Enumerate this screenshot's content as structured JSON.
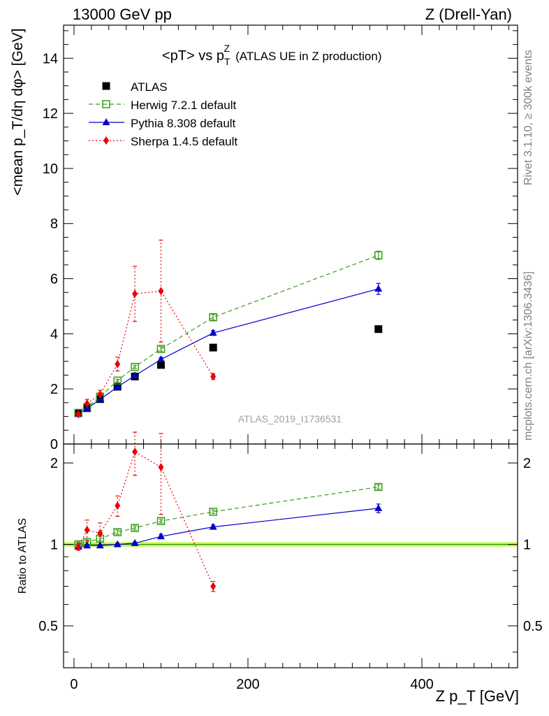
{
  "header": {
    "left": "13000 GeV pp",
    "right": "Z (Drell-Yan)"
  },
  "plot_title": {
    "main": "<pT> vs p",
    "sub": "T",
    "sup": "Z",
    "tail": "(ATLAS UE in Z production)"
  },
  "side_labels": {
    "rivet": "Rivet 3.1.10, ≥ 300k events",
    "mcplots": "mcplots.cern.ch [arXiv:1306.3436]"
  },
  "watermark": "ATLAS_2019_I1736531",
  "axis_labels": {
    "ylabel_main": "<mean p_T/dη dφ> [GeV]",
    "ylabel_ratio": "Ratio to ATLAS",
    "xlabel": "Z p_T [GeV]"
  },
  "colors": {
    "atlas": "#000000",
    "herwig": "#3a9a1a",
    "pythia": "#0000cc",
    "sherpa": "#ee0000",
    "band": "#ccff66",
    "reference": "#3a9a1a"
  },
  "chart_data": [
    {
      "type": "scatter",
      "title": "<pT> vs p_T^Z (ATLAS UE in Z production)",
      "xlabel": "Z p_T [GeV]",
      "ylabel": "<mean p_T/dη dφ> [GeV]",
      "xlim": [
        -12,
        510
      ],
      "ylim": [
        0,
        15.2
      ],
      "yticks": [
        0,
        2,
        4,
        6,
        8,
        10,
        12,
        14
      ],
      "xticks": [
        0,
        200,
        400
      ],
      "legend_position": "top-left",
      "series": [
        {
          "name": "ATLAS",
          "key": "atlas",
          "marker": "square",
          "line": "none",
          "x": [
            5,
            15,
            30,
            50,
            70,
            100,
            160,
            350
          ],
          "y": [
            1.12,
            1.3,
            1.63,
            2.08,
            2.45,
            2.87,
            3.5,
            4.17
          ]
        },
        {
          "name": "Herwig 7.2.1 default",
          "key": "herwig",
          "marker": "open-square",
          "line": "dashed",
          "x": [
            5,
            15,
            30,
            50,
            70,
            100,
            160,
            350
          ],
          "y": [
            1.13,
            1.33,
            1.72,
            2.3,
            2.8,
            3.45,
            4.6,
            6.85
          ],
          "yerr": [
            0.03,
            0.03,
            0.04,
            0.05,
            0.06,
            0.08,
            0.1,
            0.15
          ]
        },
        {
          "name": "Pythia 8.308 default",
          "key": "pythia",
          "marker": "triangle",
          "line": "solid",
          "x": [
            5,
            15,
            30,
            50,
            70,
            100,
            160,
            350
          ],
          "y": [
            1.1,
            1.29,
            1.62,
            2.07,
            2.48,
            3.07,
            4.03,
            5.63
          ],
          "yerr": [
            0.02,
            0.02,
            0.03,
            0.04,
            0.05,
            0.07,
            0.09,
            0.2
          ]
        },
        {
          "name": "Sherpa 1.4.5 default",
          "key": "sherpa",
          "marker": "diamond",
          "line": "dotted",
          "x": [
            5,
            15,
            30,
            50,
            70,
            100,
            160
          ],
          "y": [
            1.08,
            1.47,
            1.8,
            2.9,
            5.45,
            5.55,
            2.45
          ],
          "yerr": [
            0.05,
            0.15,
            0.15,
            0.25,
            1.0,
            1.85,
            0.1
          ]
        }
      ]
    },
    {
      "type": "scatter",
      "title": "Ratio to ATLAS",
      "xlabel": "Z p_T [GeV]",
      "ylabel": "Ratio to ATLAS",
      "xlim": [
        -12,
        510
      ],
      "ylim": [
        0.35,
        2.35
      ],
      "ytick_values": [
        0.5,
        1,
        2
      ],
      "ytick_labels": [
        "0.5",
        "1",
        "2"
      ],
      "xticks": [
        0,
        200,
        400
      ],
      "xtick_labels": [
        "0",
        "200",
        "400"
      ],
      "reference_line": 1.0,
      "band": [
        0.98,
        1.02
      ],
      "series": [
        {
          "name": "Herwig 7.2.1 default",
          "key": "herwig",
          "marker": "open-square",
          "line": "dashed",
          "x": [
            5,
            15,
            30,
            50,
            70,
            100,
            160,
            350
          ],
          "y": [
            1.0,
            1.02,
            1.05,
            1.11,
            1.15,
            1.22,
            1.32,
            1.63
          ],
          "yerr": [
            0.02,
            0.02,
            0.02,
            0.02,
            0.02,
            0.02,
            0.02,
            0.03
          ]
        },
        {
          "name": "Pythia 8.308 default",
          "key": "pythia",
          "marker": "triangle",
          "line": "solid",
          "x": [
            5,
            15,
            30,
            50,
            70,
            100,
            160,
            350
          ],
          "y": [
            0.98,
            0.99,
            0.99,
            1.0,
            1.01,
            1.07,
            1.16,
            1.36
          ],
          "yerr": [
            0.01,
            0.01,
            0.01,
            0.01,
            0.01,
            0.02,
            0.02,
            0.05
          ]
        },
        {
          "name": "Sherpa 1.4.5 default",
          "key": "sherpa",
          "marker": "diamond",
          "line": "dotted",
          "x": [
            5,
            15,
            30,
            50,
            70,
            100,
            160
          ],
          "y": [
            0.98,
            1.13,
            1.1,
            1.39,
            2.2,
            1.93,
            0.7
          ],
          "yerr": [
            0.03,
            0.1,
            0.1,
            0.12,
            0.4,
            0.64,
            0.03
          ]
        }
      ]
    }
  ]
}
